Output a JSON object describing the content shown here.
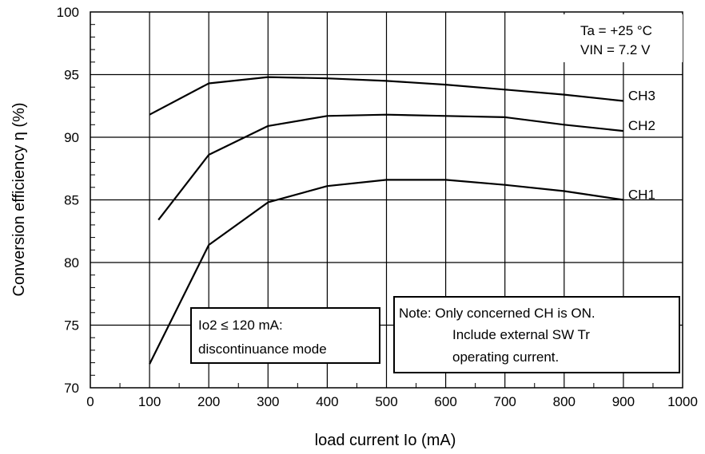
{
  "chart_data": {
    "type": "line",
    "xlabel": "load current  Io (mA)",
    "ylabel": "Conversion efficiency  η (%)",
    "xlim": [
      0,
      1000
    ],
    "ylim": [
      70,
      100
    ],
    "x_ticks": [
      "0",
      "100",
      "200",
      "300",
      "400",
      "500",
      "600",
      "700",
      "800",
      "900",
      "1000"
    ],
    "y_ticks": [
      "70",
      "75",
      "80",
      "85",
      "90",
      "95",
      "100"
    ],
    "grid": true,
    "series": [
      {
        "name": "CH3",
        "x": [
          100,
          200,
          300,
          400,
          500,
          600,
          700,
          800,
          900
        ],
        "y": [
          91.8,
          94.3,
          94.8,
          94.7,
          94.5,
          94.2,
          93.8,
          93.4,
          92.9
        ]
      },
      {
        "name": "CH2",
        "x": [
          115,
          200,
          300,
          400,
          500,
          600,
          700,
          800,
          900
        ],
        "y": [
          83.4,
          88.6,
          90.9,
          91.7,
          91.8,
          91.7,
          91.6,
          91.0,
          90.5
        ]
      },
      {
        "name": "CH1",
        "x": [
          100,
          200,
          300,
          400,
          500,
          600,
          700,
          800,
          900
        ],
        "y": [
          71.9,
          81.4,
          84.8,
          86.1,
          86.6,
          86.6,
          86.2,
          85.7,
          85.0
        ]
      }
    ],
    "annotations": {
      "conditions": [
        "Ta = +25 °C",
        "VIN = 7.2 V"
      ],
      "mode_note": [
        "Io2 ≤ 120 mA:",
        "discontinuance mode"
      ],
      "note": [
        "Note: Only concerned CH is ON.",
        "Include external SW Tr",
        "operating current."
      ]
    }
  }
}
